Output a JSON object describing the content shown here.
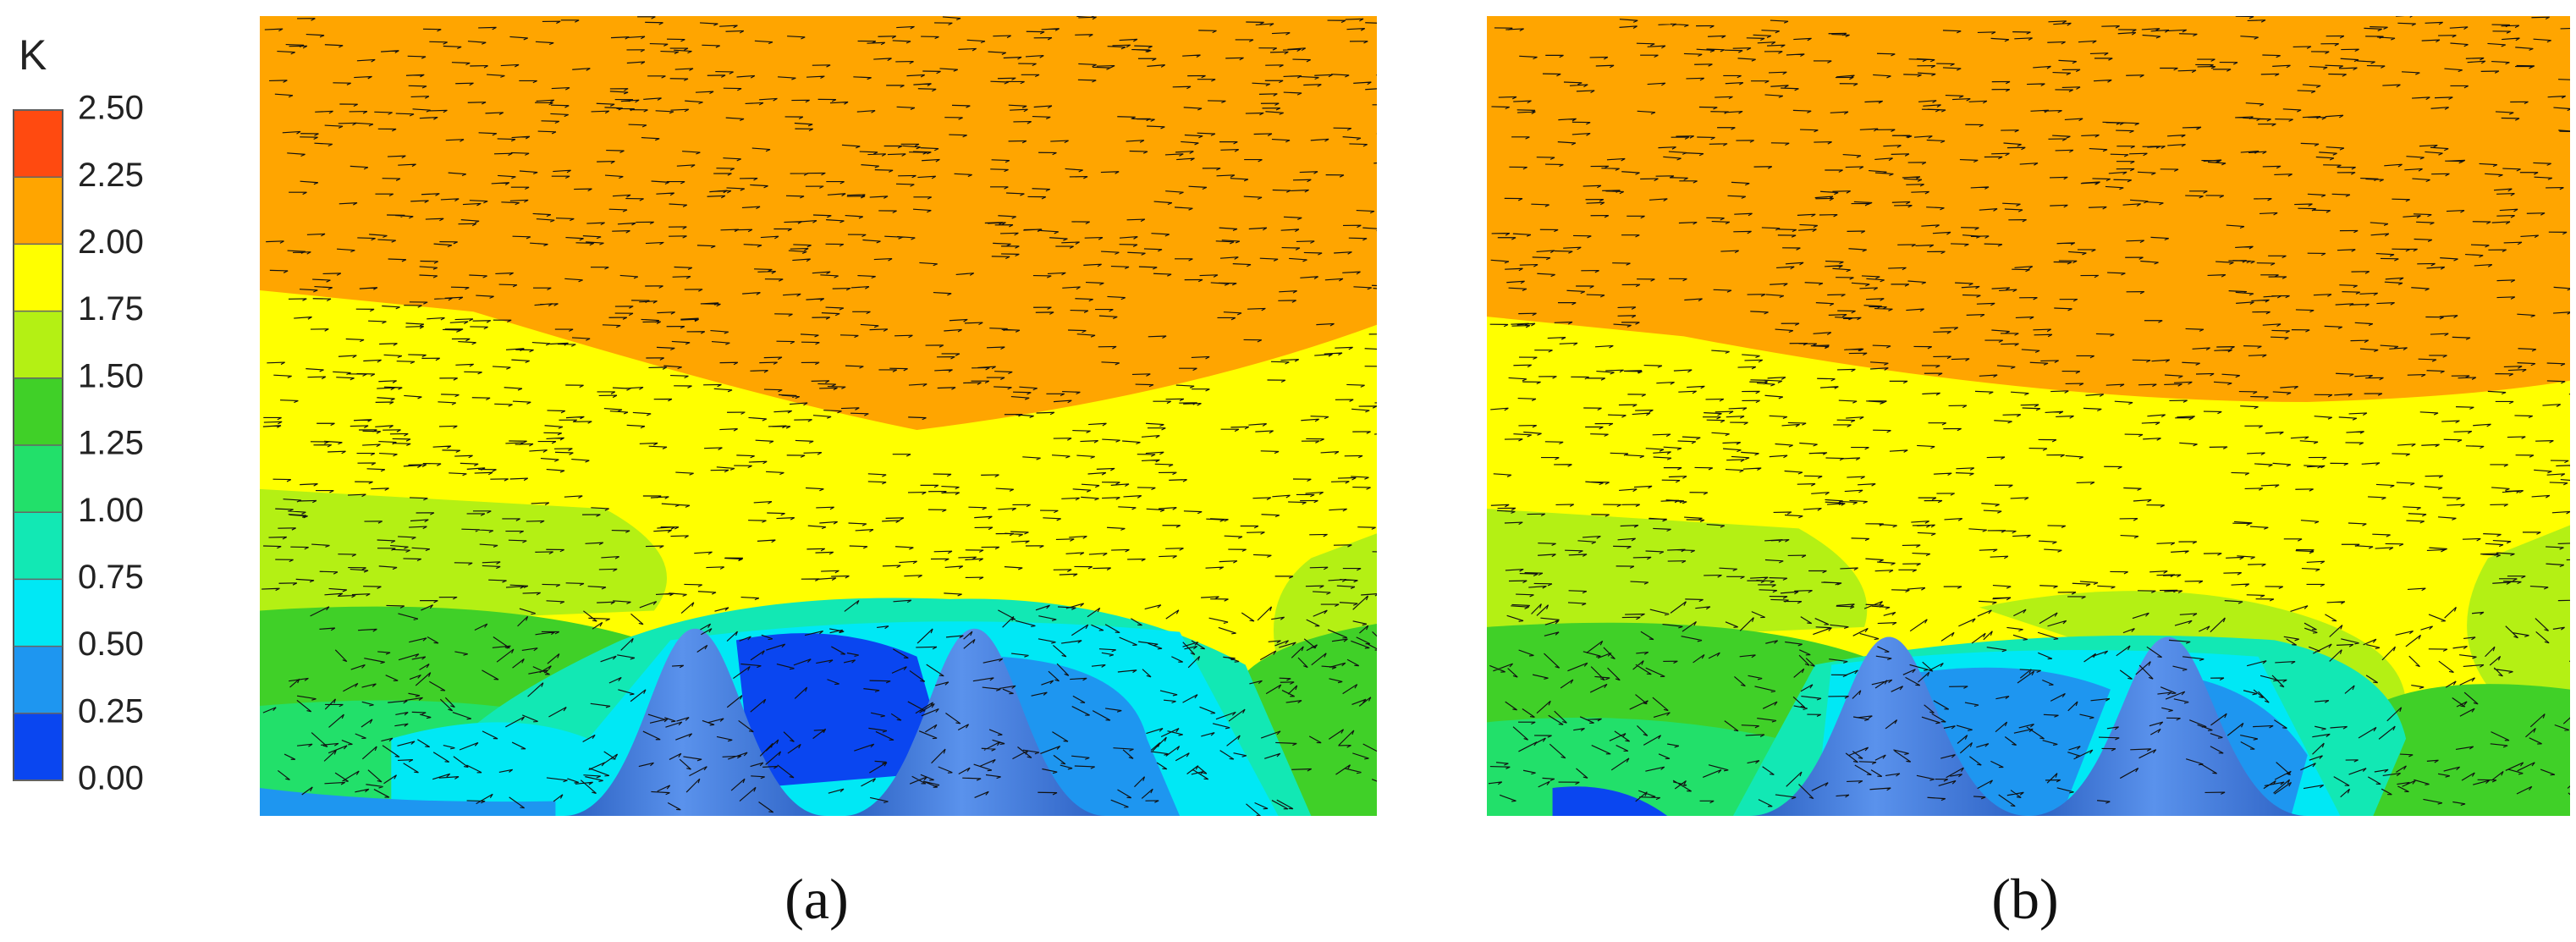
{
  "colorbar": {
    "title": "K",
    "ticks": [
      {
        "value": 0,
        "label": "0.00"
      },
      {
        "value": 0.25,
        "label": "0.25"
      },
      {
        "value": 0.5,
        "label": "0.50"
      },
      {
        "value": 0.75,
        "label": "0.75"
      },
      {
        "value": 1,
        "label": "1.00"
      },
      {
        "value": 1.25,
        "label": "1.25"
      },
      {
        "value": 1.5,
        "label": "1.50"
      },
      {
        "value": 1.75,
        "label": "1.75"
      },
      {
        "value": 2,
        "label": "2.00"
      },
      {
        "value": 2.25,
        "label": "2.25"
      },
      {
        "value": 2.5,
        "label": "2.50"
      }
    ],
    "colors": [
      "#0a46f0",
      "#1e96f0",
      "#00e8f5",
      "#12e8b4",
      "#22e06a",
      "#40d028",
      "#b4f014",
      "#ffff00",
      "#ffa500",
      "#ff4a10"
    ]
  },
  "panels": [
    {
      "label": "(a)"
    },
    {
      "label": "(b)"
    }
  ]
}
